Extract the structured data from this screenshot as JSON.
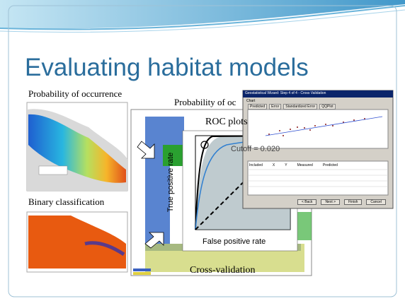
{
  "title": "Evaluating habitat models",
  "labels": {
    "occurrence": "Probability of occurrence",
    "occurrence_cut": "Probability of oc",
    "roc": "ROC plots",
    "binary": "Binary classification",
    "cross": "Cross-validation"
  },
  "roc_plot": {
    "cutoff": "Cutoff = 0.020",
    "y_label": "True positive rate",
    "x_label": "False positive rate"
  },
  "dialog": {
    "title": "Geostatistical Wizard: Step 4 of 4 - Cross Validation",
    "chart": "Chart",
    "tabs": [
      "Predicted",
      "Error",
      "Standardized Error",
      "QQPlot"
    ],
    "table_headers": [
      "Included",
      "X",
      "Y",
      "Measured",
      "Predicted"
    ],
    "buttons": [
      "< Back",
      "Next >",
      "Finish",
      "Cancel"
    ]
  }
}
